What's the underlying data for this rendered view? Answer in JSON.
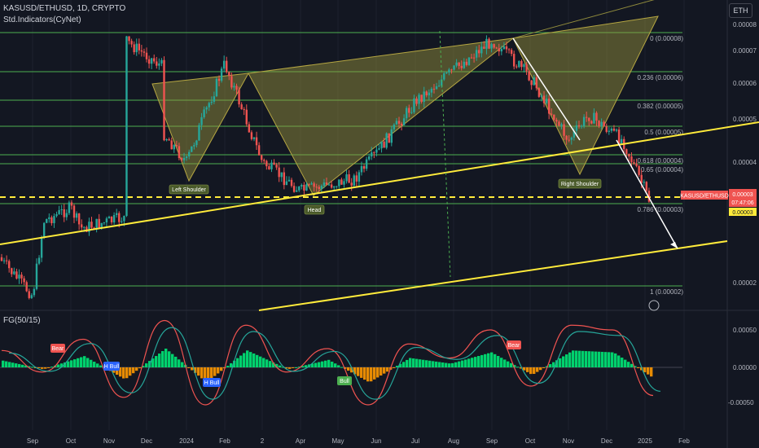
{
  "header": {
    "title": "KASUSD/ETHUSD, 1D, CRYPTO",
    "indicator": "Std.Indicators(CyNet)",
    "currency_button": "ETH",
    "oscillator_title": "FG(50/15)"
  },
  "price_tags": {
    "symbol": "KASUSD/ETHUSD",
    "last_price": "0.00003",
    "countdown": "07:47:06",
    "target": "0.00003"
  },
  "colors": {
    "background": "#131722",
    "fib_line": "#4caf50",
    "pattern_fill": "#9e9a3e",
    "trendline": "#ffeb3b",
    "up_candle": "#26a69a",
    "down_candle": "#ef5350",
    "oscillator_up": "#00e676",
    "oscillator_down": "#ff9800"
  },
  "chart_data": [
    {
      "type": "candlestick",
      "title": "KASUSD/ETHUSD, 1D, CRYPTO",
      "y_axis_ticks": [
        "0.00008",
        "0.00007",
        "0.00006",
        "0.00005",
        "0.00004",
        "0.00003",
        "0.00002"
      ],
      "x_axis_ticks": [
        "Sep",
        "Oct",
        "Nov",
        "Dec",
        "2024",
        "Feb",
        "2",
        "Apr",
        "May",
        "Jun",
        "Jul",
        "Aug",
        "Sep",
        "Oct",
        "Nov",
        "Dec",
        "2025",
        "Feb"
      ],
      "fibonacci_levels": [
        {
          "label": "0 (0.00008)",
          "level": 0,
          "value": 8e-05
        },
        {
          "label": "0.236 (0.00006)",
          "level": 0.236,
          "value": 6e-05
        },
        {
          "label": "0.382 (0.00005)",
          "level": 0.382,
          "value": 5e-05
        },
        {
          "label": "0.5 (0.00005)",
          "level": 0.5,
          "value": 5e-05
        },
        {
          "label": "0.618 (0.00004)",
          "level": 0.618,
          "value": 4e-05
        },
        {
          "label": "0.65 (0.00004)",
          "level": 0.65,
          "value": 4e-05
        },
        {
          "label": "0.786 (0.00003)",
          "level": 0.786,
          "value": 3e-05
        },
        {
          "label": "1 (0.00002)",
          "level": 1,
          "value": 2e-05
        }
      ],
      "annotations": [
        "Left Shoulder",
        "Head",
        "Right Shoulder"
      ],
      "price_path": [
        [
          "Aug",
          2.35e-05
        ],
        [
          "Sep",
          1.85e-05
        ],
        [
          "Sep",
          2.85e-05
        ],
        [
          "Oct",
          3.05e-05
        ],
        [
          "Oct",
          2.75e-05
        ],
        [
          "Nov",
          2.9e-05
        ],
        [
          "Nov",
          7.8e-05
        ],
        [
          "Dec",
          6.5e-05
        ],
        [
          "Dec",
          5.2e-05
        ],
        [
          "2024",
          4e-05
        ],
        [
          "2024",
          5e-05
        ],
        [
          "Feb",
          6.6e-05
        ],
        [
          "2",
          4e-05
        ],
        [
          "Apr",
          3.4e-05
        ],
        [
          "May",
          3.65e-05
        ],
        [
          "Jun",
          4.2e-05
        ],
        [
          "Jul",
          5.5e-05
        ],
        [
          "Aug",
          6.8e-05
        ],
        [
          "Sep",
          7.4e-05
        ],
        [
          "Oct",
          6.2e-05
        ],
        [
          "Nov",
          4.5e-05
        ],
        [
          "Nov",
          5.1e-05
        ],
        [
          "Dec",
          4.5e-05
        ],
        [
          "2025",
          3.1e-05
        ]
      ]
    },
    {
      "type": "line",
      "title": "FG(50/15)",
      "y_axis_ticks": [
        "0.00050",
        "0.00000",
        "-0.00050"
      ],
      "x_axis_ticks": [
        "Sep",
        "Oct",
        "Nov",
        "Dec",
        "2024",
        "Feb",
        "2",
        "Apr",
        "May",
        "Jun",
        "Jul",
        "Aug",
        "Sep",
        "Oct",
        "Nov",
        "Dec",
        "2025",
        "Feb"
      ],
      "annotations": [
        "Bear",
        "H Bull",
        "H Bull",
        "Bull",
        "Bear"
      ],
      "series": [
        {
          "values": [
            0.00018,
            -5e-05,
            0.0003,
            -0.00032,
            0.0005,
            -0.0004,
            0.00045,
            -5e-05,
            0.0002,
            -0.0004,
            0.00025,
            0.0001,
            0.0004,
            -0.0002,
            0.00045,
            0.0004,
            -0.0003
          ]
        }
      ]
    }
  ]
}
